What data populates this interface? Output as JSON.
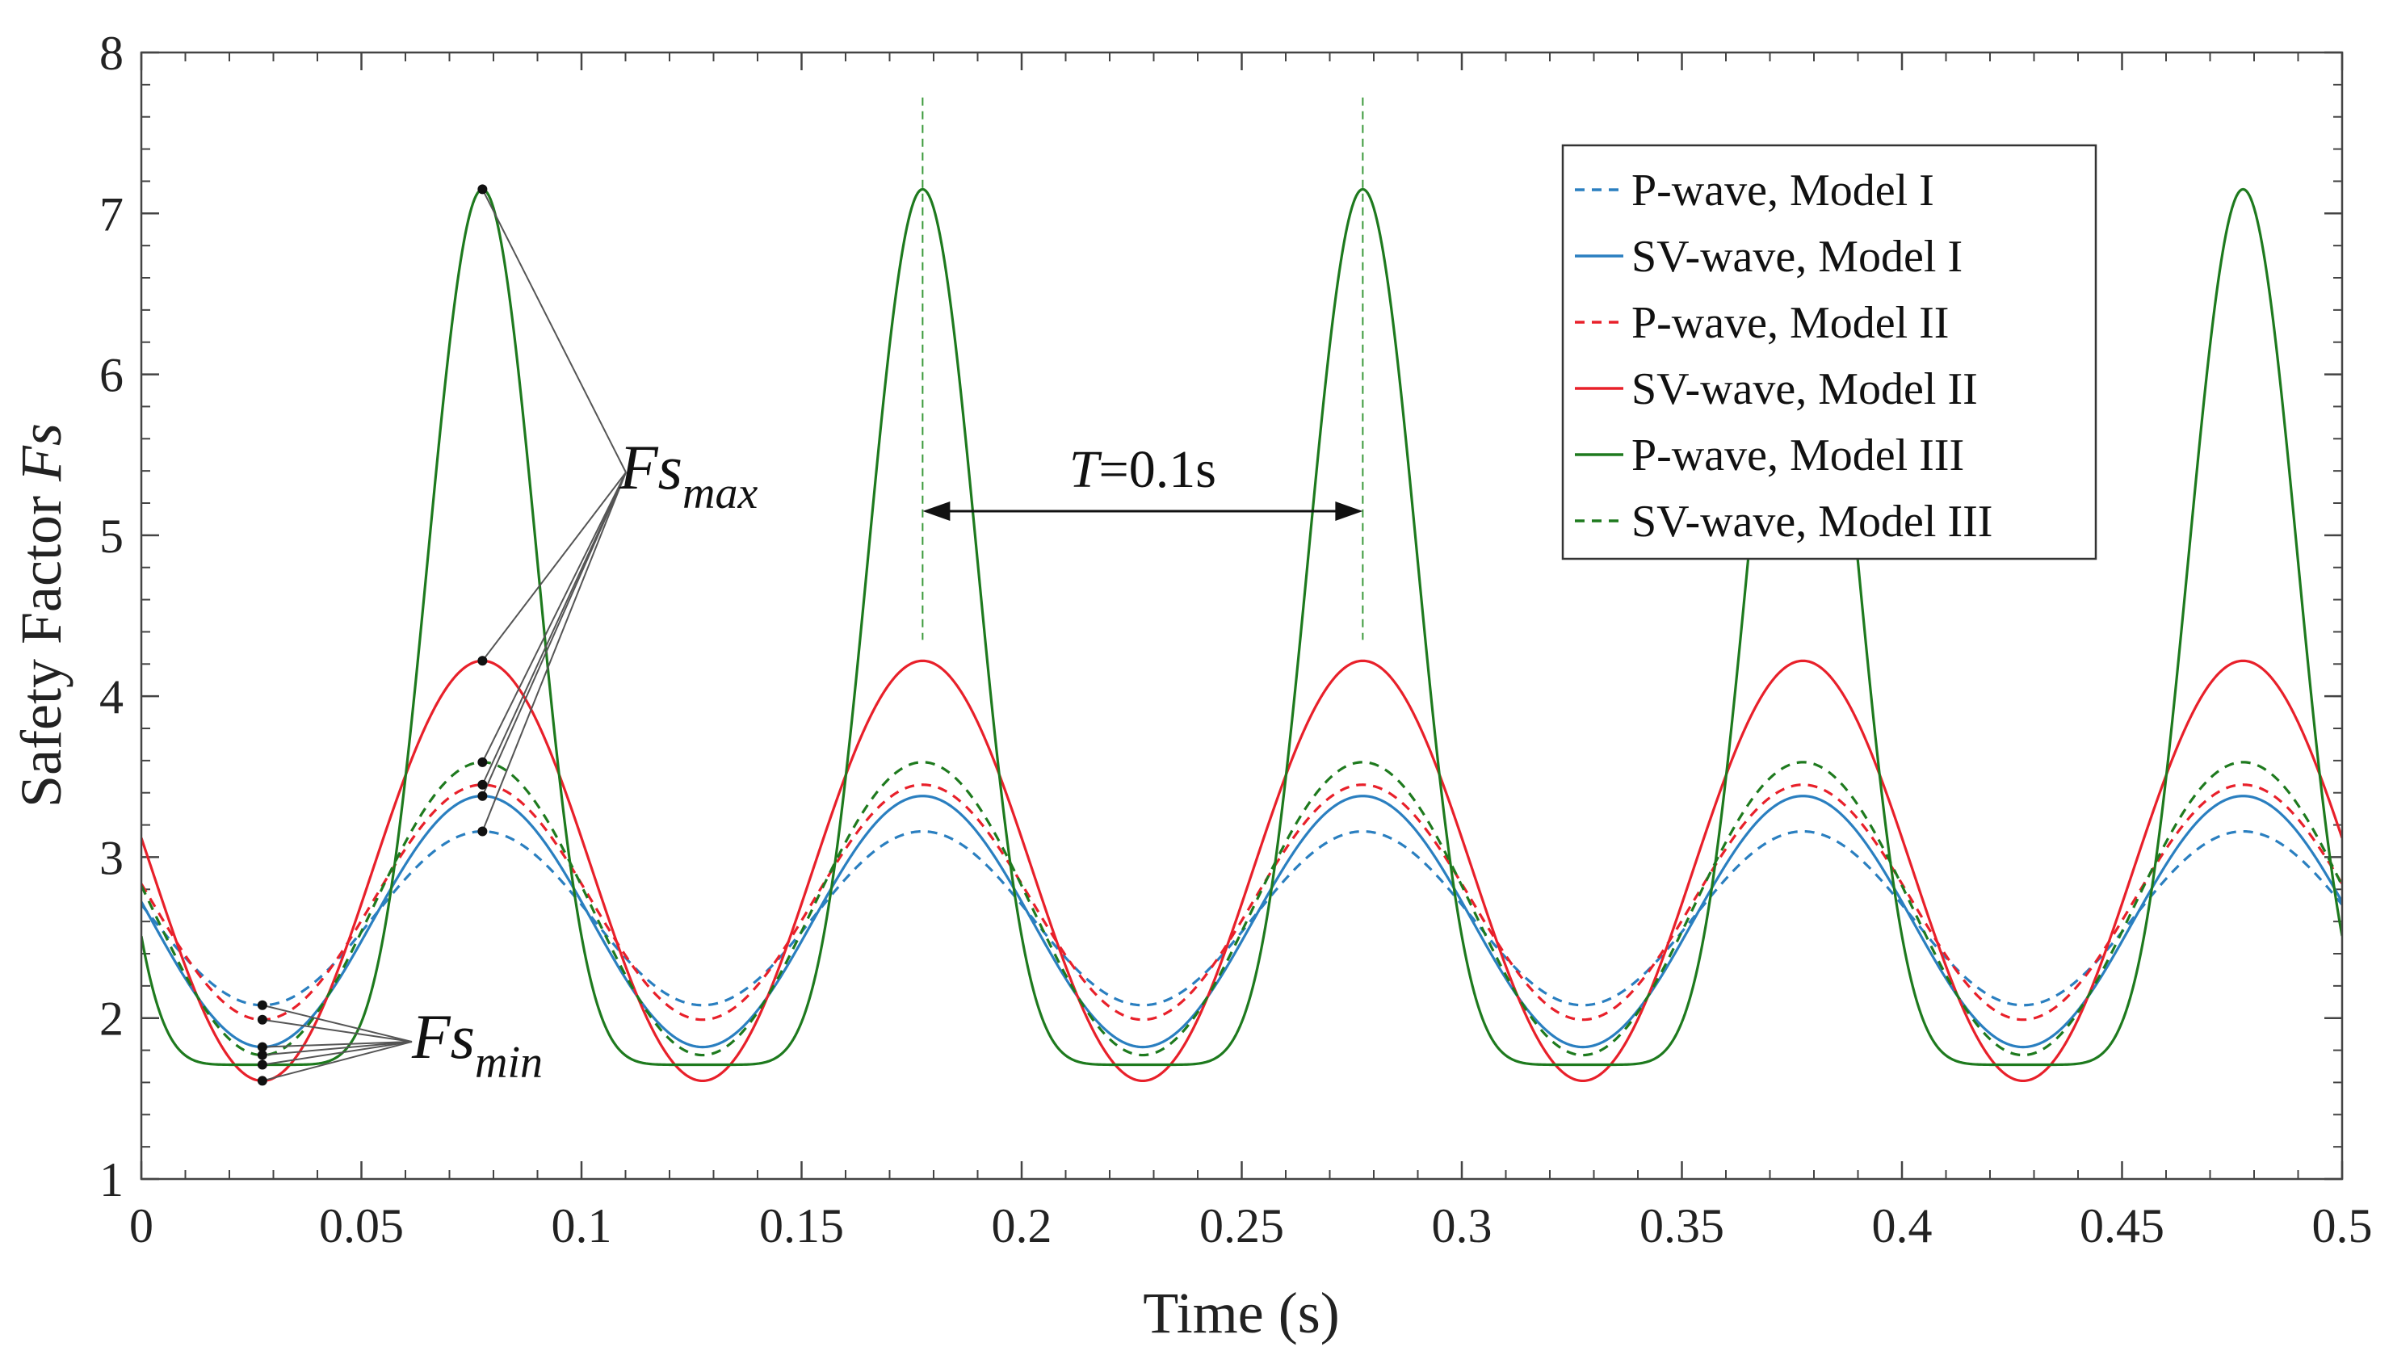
{
  "chart_data": {
    "type": "line",
    "title": "",
    "xlabel": "Time (s)",
    "ylabel_main": "Safety Factor ",
    "ylabel_italic": "Fs",
    "xlim": [
      0,
      0.5
    ],
    "ylim": [
      1,
      8
    ],
    "xticks": [
      0,
      0.05,
      0.1,
      0.15,
      0.2,
      0.25,
      0.3,
      0.35,
      0.4,
      0.45,
      0.5
    ],
    "xtick_labels": [
      "0",
      "0.05",
      "0.1",
      "0.15",
      "0.2",
      "0.25",
      "0.3",
      "0.35",
      "0.4",
      "0.45",
      "0.5"
    ],
    "yticks": [
      1,
      2,
      3,
      4,
      5,
      6,
      7,
      8
    ],
    "ytick_labels": [
      "1",
      "2",
      "3",
      "4",
      "5",
      "6",
      "7",
      "8"
    ],
    "grid": false,
    "legend_position": "top-right",
    "period": 0.1,
    "peak_times": [
      0.0775,
      0.1775,
      0.2775,
      0.3775,
      0.4775
    ],
    "trough_times": [
      0.0275,
      0.1275,
      0.2275,
      0.3275,
      0.4275
    ],
    "series": [
      {
        "name": "P-wave,    Model I",
        "color": "#2a7fc0",
        "dash": "dashed",
        "min": 2.08,
        "max": 3.16,
        "sharpness": 1.0
      },
      {
        "name": "SV-wave, Model I",
        "color": "#2a7fc0",
        "dash": "solid",
        "min": 1.82,
        "max": 3.38,
        "sharpness": 1.0
      },
      {
        "name": "P-wave,    Model II",
        "color": "#e8202a",
        "dash": "dashed",
        "min": 1.99,
        "max": 3.45,
        "sharpness": 1.0
      },
      {
        "name": "SV-wave, Model II",
        "color": "#e8202a",
        "dash": "solid",
        "min": 1.61,
        "max": 4.22,
        "sharpness": 1.0
      },
      {
        "name": "P-wave,    Model III",
        "color": "#1e7a1e",
        "dash": "solid",
        "min": 1.71,
        "max": 7.15,
        "sharpness": 3.5
      },
      {
        "name": "SV-wave, Model III",
        "color": "#1e7a1e",
        "dash": "dashed",
        "min": 1.77,
        "max": 3.59,
        "sharpness": 1.0
      }
    ],
    "annotations": {
      "fs_max_main": "Fs",
      "fs_max_sub": "max",
      "fs_min_main": "Fs",
      "fs_min_sub": "min",
      "period_italic": "T",
      "period_rest": "=0.1s"
    }
  }
}
